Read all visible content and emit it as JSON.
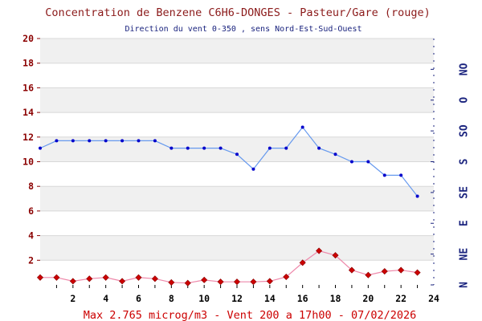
{
  "chart_data": {
    "type": "line",
    "title": "Concentration de Benzene C6H6-DONGES - Pasteur/Gare (rouge)",
    "subtitle": "Direction du vent 0-350 , sens Nord-Est-Sud-Ouest",
    "footer": "Max 2.765 microg/m3 - Vent 200  a 17h00 - 07/02/2026",
    "x": [
      0,
      1,
      2,
      3,
      4,
      5,
      6,
      7,
      8,
      9,
      10,
      11,
      12,
      13,
      14,
      15,
      16,
      17,
      18,
      19,
      20,
      21,
      22,
      23
    ],
    "xlim": [
      0,
      24
    ],
    "ylim": [
      0,
      20
    ],
    "x_ticks": [
      "2",
      "4",
      "6",
      "8",
      "10",
      "12",
      "14",
      "16",
      "18",
      "20",
      "22",
      "24"
    ],
    "y_ticks": [
      "2",
      "4",
      "6",
      "8",
      "10",
      "12",
      "14",
      "16",
      "18",
      "20"
    ],
    "direction_axis_labels": [
      "N",
      "NE",
      "E",
      "SE",
      "S",
      "SO",
      "O",
      "NO"
    ],
    "grid": "horizontal bands",
    "series": [
      {
        "color": "#0000cc",
        "line_color": "#6699ee",
        "marker": "dot",
        "values": [
          11.1,
          11.7,
          11.7,
          11.7,
          11.7,
          11.7,
          11.7,
          11.7,
          11.1,
          11.1,
          11.1,
          11.1,
          10.6,
          9.4,
          11.1,
          11.1,
          12.8,
          11.1,
          10.6,
          10.0,
          10.0,
          8.9,
          8.9,
          7.2
        ]
      },
      {
        "color": "#cc0000",
        "line_color": "#ee88aa",
        "marker": "diamond",
        "values": [
          0.6,
          0.6,
          0.3,
          0.5,
          0.6,
          0.3,
          0.6,
          0.5,
          0.2,
          0.15,
          0.4,
          0.25,
          0.25,
          0.25,
          0.3,
          0.65,
          1.8,
          2.765,
          2.4,
          1.2,
          0.8,
          1.1,
          1.2,
          1.0
        ]
      }
    ]
  }
}
